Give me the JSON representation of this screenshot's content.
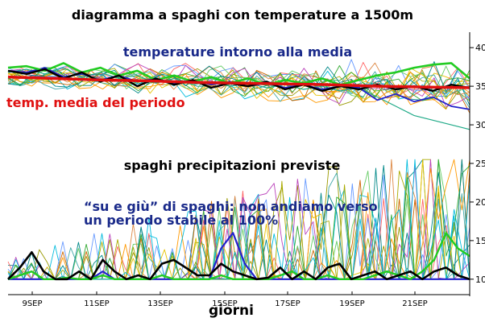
{
  "title": "diagramma a spaghi con temperature a 1500m",
  "xlabel": "giorni",
  "annotations": {
    "temp_around_mean": "temperature intorno alla media",
    "period_mean_temp": "temp. media del periodo",
    "precip_spaghetti": "spaghi precipitazioni previste",
    "up_down_line1": "“su e giù” di spaghi: non andiamo verso",
    "up_down_line2": "un periodo stabile al 100%"
  },
  "colors": {
    "mean_line": "#e01010",
    "control": "#000000",
    "highlight_green": "#22cc22",
    "highlight_blue": "#2222cc",
    "title_blue": "#1a2a8a",
    "title_red": "#e01010"
  },
  "chart_data": {
    "type": "line",
    "xlabel": "giorni",
    "x_ticks": [
      "9SEP",
      "11SEP",
      "13SEP",
      "15SEP",
      "17SEP",
      "19SEP",
      "21SEP"
    ],
    "y_ticks": [
      "10",
      "15",
      "20",
      "25",
      "30",
      "35",
      "40"
    ],
    "ylim": [
      8,
      42
    ],
    "grid": false,
    "temperature_panel": {
      "mean": {
        "name": "temp. media del periodo",
        "values": [
          36.2,
          36.0,
          35.8,
          35.7,
          35.5,
          35.4,
          35.3,
          35.2,
          35.0,
          34.9,
          34.8
        ]
      },
      "control": {
        "values": [
          37,
          36.6,
          37.2,
          36,
          36.8,
          35.6,
          36.4,
          35,
          36,
          35.2,
          35.8,
          34.8,
          35.4,
          35,
          35.6,
          34.6,
          35.2,
          34.4,
          35,
          34.6,
          35.2,
          34.6,
          35,
          34.4,
          35.2,
          34.8
        ]
      },
      "green": {
        "values": [
          37.4,
          37.6,
          37,
          38,
          36.8,
          37.4,
          36.4,
          37,
          35.8,
          36.4,
          35.6,
          36.2,
          35.4,
          36,
          35.2,
          35.8,
          35.4,
          36,
          35.2,
          35.8,
          36.4,
          36.8,
          37.4,
          37.8,
          38,
          36
        ]
      },
      "blue": {
        "values": [
          37,
          36.8,
          37.4,
          36.2,
          36.6,
          35.8,
          36.4,
          35.6,
          36,
          35.4,
          35.8,
          35.2,
          35.6,
          35,
          35.4,
          34.8,
          35.2,
          34.6,
          35,
          34.8,
          33.2,
          34,
          33,
          33.6,
          32.4,
          32
        ]
      },
      "teal": {
        "values": [
          36.8,
          37.2,
          36.6,
          37.4,
          36.2,
          36.8,
          36,
          36.4,
          35.4,
          36,
          35.2,
          35.6,
          35,
          35.4,
          34.8,
          35.2,
          34.6,
          35,
          34.4,
          34.8,
          33.6,
          32.4,
          31.2,
          30.6,
          30,
          29.4
        ]
      }
    },
    "precipitation_panel": {
      "control": {
        "values": [
          10,
          11.5,
          13.5,
          11,
          10,
          10,
          11,
          10,
          12.5,
          11,
          10,
          10.5,
          10,
          12,
          12.5,
          11.5,
          10.5,
          10.5,
          12,
          11,
          10.5,
          10,
          10.2,
          11.5,
          10,
          11,
          10,
          11.5,
          12,
          10,
          10.5,
          11,
          10,
          10.5,
          11,
          10,
          11,
          11.5,
          10.5,
          10
        ]
      },
      "green": {
        "values": [
          10,
          10.5,
          11,
          10,
          10,
          10.2,
          10,
          10,
          10.5,
          10,
          10,
          10,
          10,
          10.5,
          10,
          10,
          10,
          10,
          10.5,
          10,
          10,
          10,
          10,
          10.5,
          11,
          10,
          10,
          10.5,
          10,
          10,
          10,
          10.5,
          11,
          10.5,
          10,
          11,
          12.5,
          16,
          14,
          13
        ]
      },
      "blue": {
        "values": [
          10,
          10,
          10,
          10,
          10,
          10,
          10,
          10,
          11,
          10,
          10,
          10,
          10,
          10,
          10,
          10,
          10,
          10,
          14,
          16,
          12,
          10,
          10,
          10,
          10,
          10,
          10,
          10,
          10,
          10,
          10,
          10,
          10,
          10,
          10,
          10,
          10,
          10,
          10,
          10
        ]
      }
    }
  }
}
